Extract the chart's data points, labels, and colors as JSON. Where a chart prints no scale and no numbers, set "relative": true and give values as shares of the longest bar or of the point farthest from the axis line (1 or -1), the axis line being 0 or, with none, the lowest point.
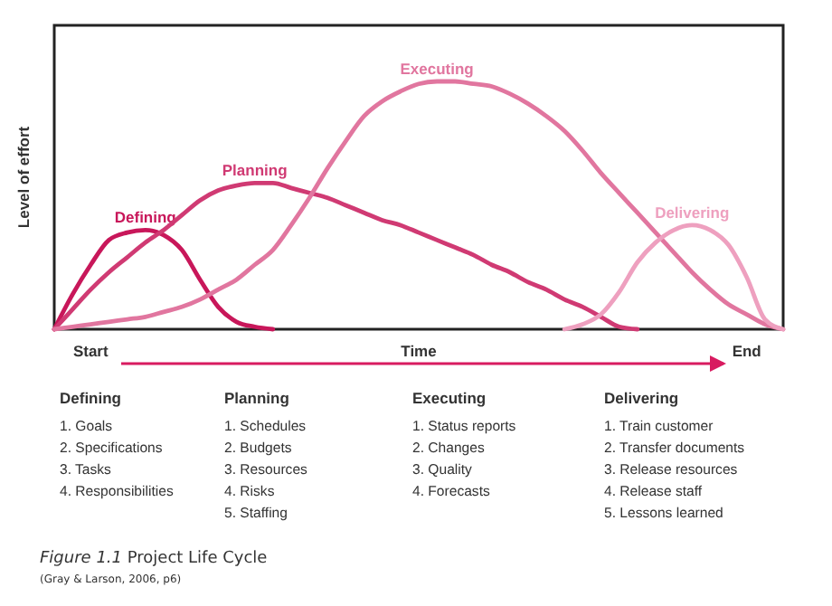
{
  "chart_data": {
    "type": "line",
    "relative": true,
    "title": "Figure 1.1 Project Life Cycle",
    "ylabel": "Level of effort",
    "xlabel": "Time",
    "categories": [
      null,
      null,
      "Start",
      null,
      null,
      null,
      null,
      null,
      null,
      null,
      null,
      null,
      null,
      null,
      null,
      null,
      null,
      null,
      null,
      null,
      null,
      null,
      null,
      null,
      null,
      null,
      null,
      null,
      null,
      null,
      null,
      null,
      null,
      null,
      null,
      null,
      null,
      null,
      "End",
      null,
      null
    ],
    "grid": false,
    "legend": false,
    "marker": "none",
    "line_style": "solid",
    "series": [
      {
        "name": "Defining",
        "color": "#c8175a",
        "values": [
          0,
          0.14,
          0.26,
          0.36,
          0.39,
          0.4,
          0.38,
          0.32,
          0.2,
          0.09,
          0.03,
          0.01,
          0,
          null,
          null,
          null,
          null,
          null,
          null,
          null,
          null,
          null,
          null,
          null,
          null,
          null,
          null,
          null,
          null,
          null,
          null,
          null,
          null,
          null,
          null,
          null,
          null,
          null,
          null,
          null,
          null
        ]
      },
      {
        "name": "Planning",
        "color": "#d03a73",
        "values": [
          0,
          0.08,
          0.16,
          0.23,
          0.29,
          0.35,
          0.4,
          0.46,
          0.52,
          0.56,
          0.58,
          0.59,
          0.59,
          0.57,
          0.55,
          0.53,
          0.5,
          0.47,
          0.44,
          0.42,
          0.39,
          0.36,
          0.33,
          0.3,
          0.26,
          0.23,
          0.19,
          0.16,
          0.12,
          0.09,
          0.05,
          0.01,
          0,
          null,
          null,
          null,
          null,
          null,
          null,
          null,
          null
        ]
      },
      {
        "name": "Executing",
        "color": "#e1769f",
        "values": [
          0,
          0.01,
          0.02,
          0.03,
          0.04,
          0.05,
          0.07,
          0.09,
          0.12,
          0.16,
          0.2,
          0.26,
          0.32,
          0.42,
          0.53,
          0.65,
          0.76,
          0.86,
          0.92,
          0.96,
          0.99,
          1,
          1,
          0.99,
          0.98,
          0.95,
          0.91,
          0.86,
          0.8,
          0.72,
          0.63,
          0.55,
          0.47,
          0.39,
          0.31,
          0.23,
          0.16,
          0.1,
          0.06,
          0.02,
          0
        ]
      },
      {
        "name": "Delivering",
        "color": "#eea0bf",
        "values": [
          null,
          null,
          null,
          null,
          null,
          null,
          null,
          null,
          null,
          null,
          null,
          null,
          null,
          null,
          null,
          null,
          null,
          null,
          null,
          null,
          null,
          null,
          null,
          null,
          null,
          null,
          null,
          null,
          0,
          0.02,
          0.06,
          0.15,
          0.27,
          0.35,
          0.4,
          0.42,
          0.4,
          0.34,
          0.21,
          0.04,
          0
        ]
      }
    ],
    "annotations": [
      "Defining\n1. Goals\n2. Specifications\n3. Tasks\n4. Responsibilities",
      "Planning\n1. Schedules\n2. Budgets\n3. Resources\n4. Risks\n5. Staffing",
      "Executing\n1. Status reports\n2. Changes\n3. Quality\n4. Forecasts",
      "Delivering\n1. Train customer\n2. Transfer documents\n3. Release resources\n4. Release staff\n5. Lessons learned",
      "(Gray & Larson, 2006, p6)"
    ]
  }
}
